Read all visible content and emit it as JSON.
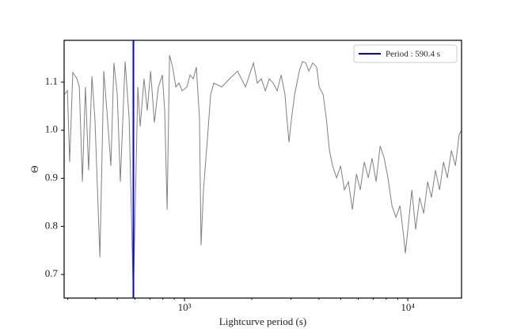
{
  "chart_data": {
    "type": "line",
    "xlabel": "Lightcurve period (s)",
    "ylabel": "Θ",
    "xscale": "log",
    "xlim": [
      289,
      17400
    ],
    "ylim": [
      0.651,
      1.187
    ],
    "xticks": [
      {
        "value": 1000,
        "label": "10³"
      },
      {
        "value": 10000,
        "label": "10⁴"
      }
    ],
    "xminorticks": [
      300,
      400,
      500,
      600,
      700,
      800,
      900,
      2000,
      3000,
      4000,
      5000,
      6000,
      7000,
      8000,
      9000
    ],
    "yticks": [
      0.7,
      0.8,
      0.9,
      {
        "value": 1,
        "label": "1.0"
      },
      1.1
    ],
    "legend": "upper right",
    "vline": {
      "name": "Period : 590.4 s",
      "x": 590.4,
      "color": "#0000ff"
    },
    "x": [
      289,
      299,
      306,
      316,
      330,
      338,
      349,
      360,
      372,
      385,
      397,
      418,
      435,
      449,
      468,
      483,
      500,
      516,
      542,
      565,
      590,
      618,
      633,
      659,
      681,
      705,
      733,
      764,
      796,
      815,
      836,
      857,
      885,
      914,
      944,
      976,
      1025,
      1059,
      1094,
      1130,
      1167,
      1186,
      1216,
      1267,
      1309,
      1353,
      1468,
      1592,
      1728,
      1875,
      1954,
      2036,
      2119,
      2208,
      2301,
      2396,
      2496,
      2600,
      2709,
      2818,
      2864,
      2938,
      3013,
      3112,
      3266,
      3373,
      3491,
      3606,
      3750,
      3908,
      4009,
      4178,
      4315,
      4457,
      4603,
      4797,
      5000,
      5200,
      5420,
      5649,
      5888,
      6124,
      6383,
      6653,
      6918,
      7211,
      7516,
      7834,
      8147,
      8492,
      8851,
      9226,
      9594,
      9750,
      10090,
      10420,
      10840,
      11300,
      11780,
      12270,
      12760,
      13300,
      13870,
      14450,
      15030,
      15670,
      16330,
      16980,
      17400
    ],
    "series": [
      {
        "color": "#808080",
        "values": [
          1.074,
          1.082,
          0.934,
          1.12,
          1.107,
          1.09,
          0.893,
          1.09,
          0.917,
          1.112,
          1.024,
          0.736,
          1.123,
          1.041,
          0.926,
          1.14,
          1.074,
          0.893,
          1.143,
          1.024,
          0.654,
          1.09,
          1.008,
          1.107,
          1.041,
          1.123,
          1.016,
          1.09,
          1.115,
          1.041,
          0.835,
          1.156,
          1.131,
          1.09,
          1.098,
          1.082,
          1.09,
          1.115,
          1.107,
          1.131,
          1.024,
          0.761,
          0.876,
          0.983,
          1.074,
          1.098,
          1.09,
          1.107,
          1.123,
          1.09,
          1.115,
          1.14,
          1.098,
          1.107,
          1.082,
          1.107,
          1.098,
          1.082,
          1.115,
          1.074,
          1.033,
          0.975,
          1.024,
          1.074,
          1.123,
          1.143,
          1.14,
          1.123,
          1.14,
          1.131,
          1.09,
          1.074,
          1.024,
          0.958,
          0.926,
          0.901,
          0.926,
          0.876,
          0.893,
          0.835,
          0.909,
          0.876,
          0.934,
          0.901,
          0.942,
          0.893,
          0.967,
          0.942,
          0.901,
          0.843,
          0.819,
          0.843,
          0.777,
          0.744,
          0.81,
          0.876,
          0.794,
          0.86,
          0.827,
          0.893,
          0.86,
          0.917,
          0.876,
          0.934,
          0.901,
          0.958,
          0.926,
          0.991,
          1.0
        ]
      }
    ]
  }
}
